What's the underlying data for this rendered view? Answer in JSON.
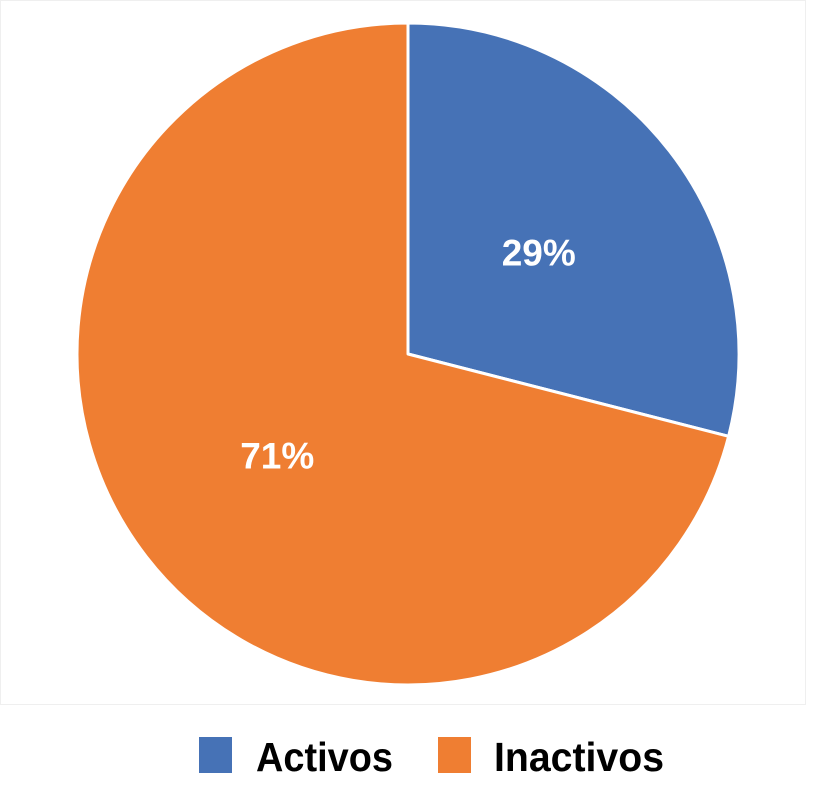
{
  "chart_data": {
    "type": "pie",
    "categories": [
      "Activos",
      "Inactivos"
    ],
    "values": [
      29,
      71
    ],
    "data_labels": [
      "29%",
      "71%"
    ],
    "colors": [
      "#4672B6",
      "#EF7E32"
    ],
    "legend_position": "bottom",
    "title": ""
  }
}
